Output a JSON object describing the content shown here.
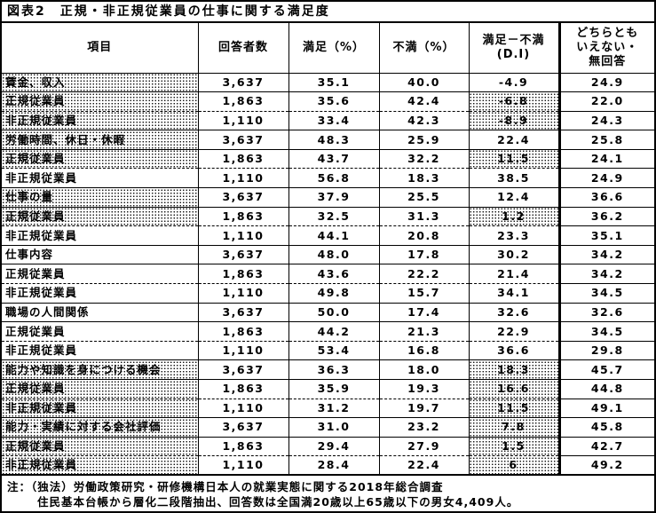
{
  "title": "図表2　正規・非正規従業員の仕事に関する満足度",
  "colors": {
    "border": "#000000",
    "background": "#ffffff",
    "text": "#000000",
    "shading_pattern": "black-dot-halftone"
  },
  "table": {
    "columns": [
      "項目",
      "回答者数",
      "満足（%）",
      "不満（%）",
      "満足－不満\n(D.I)",
      "どちらとも\nいえない・\n無回答"
    ],
    "rows": [
      {
        "label": "賃金、収入",
        "respondents": "3,637",
        "satisfied": "35.1",
        "dissatisfied": "40.0",
        "di": "-4.9",
        "neither": "24.9",
        "row_type": "item",
        "label_shaded": true,
        "di_shaded": false,
        "dashed_top": false
      },
      {
        "label": "正規従業員",
        "respondents": "1,863",
        "satisfied": "35.6",
        "dissatisfied": "42.4",
        "di": "-6.8",
        "neither": "22.0",
        "row_type": "sub",
        "label_shaded": true,
        "di_shaded": true,
        "dashed_top": false
      },
      {
        "label": "非正規従業員",
        "respondents": "1,110",
        "satisfied": "33.4",
        "dissatisfied": "42.3",
        "di": "-8.9",
        "neither": "24.3",
        "row_type": "sub",
        "label_shaded": true,
        "di_shaded": true,
        "dashed_top": true
      },
      {
        "label": "労働時間、休日・休暇",
        "respondents": "3,637",
        "satisfied": "48.3",
        "dissatisfied": "25.9",
        "di": "22.4",
        "neither": "25.8",
        "row_type": "item",
        "label_shaded": true,
        "di_shaded": false,
        "dashed_top": false
      },
      {
        "label": "正規従業員",
        "respondents": "1,863",
        "satisfied": "43.7",
        "dissatisfied": "32.2",
        "di": "11.5",
        "neither": "24.1",
        "row_type": "sub",
        "label_shaded": true,
        "di_shaded": true,
        "dashed_top": false
      },
      {
        "label": "非正規従業員",
        "respondents": "1,110",
        "satisfied": "56.8",
        "dissatisfied": "18.3",
        "di": "38.5",
        "neither": "24.9",
        "row_type": "sub",
        "label_shaded": false,
        "di_shaded": false,
        "dashed_top": true
      },
      {
        "label": "仕事の量",
        "respondents": "3,637",
        "satisfied": "37.9",
        "dissatisfied": "25.5",
        "di": "12.4",
        "neither": "36.6",
        "row_type": "item",
        "label_shaded": true,
        "di_shaded": false,
        "dashed_top": false
      },
      {
        "label": "正規従業員",
        "respondents": "1,863",
        "satisfied": "32.5",
        "dissatisfied": "31.3",
        "di": "1.2",
        "neither": "36.2",
        "row_type": "sub",
        "label_shaded": true,
        "di_shaded": true,
        "dashed_top": false
      },
      {
        "label": "非正規従業員",
        "respondents": "1,110",
        "satisfied": "44.1",
        "dissatisfied": "20.8",
        "di": "23.3",
        "neither": "35.1",
        "row_type": "sub",
        "label_shaded": false,
        "di_shaded": false,
        "dashed_top": true
      },
      {
        "label": "仕事内容",
        "respondents": "3,637",
        "satisfied": "48.0",
        "dissatisfied": "17.8",
        "di": "30.2",
        "neither": "34.2",
        "row_type": "item",
        "label_shaded": false,
        "di_shaded": false,
        "dashed_top": false
      },
      {
        "label": "正規従業員",
        "respondents": "1,863",
        "satisfied": "43.6",
        "dissatisfied": "22.2",
        "di": "21.4",
        "neither": "34.2",
        "row_type": "sub",
        "label_shaded": false,
        "di_shaded": false,
        "dashed_top": false
      },
      {
        "label": "非正規従業員",
        "respondents": "1,110",
        "satisfied": "49.8",
        "dissatisfied": "15.7",
        "di": "34.1",
        "neither": "34.5",
        "row_type": "sub",
        "label_shaded": false,
        "di_shaded": false,
        "dashed_top": true
      },
      {
        "label": "職場の人間関係",
        "respondents": "3,637",
        "satisfied": "50.0",
        "dissatisfied": "17.4",
        "di": "32.6",
        "neither": "32.6",
        "row_type": "item",
        "label_shaded": false,
        "di_shaded": false,
        "dashed_top": false
      },
      {
        "label": "正規従業員",
        "respondents": "1,863",
        "satisfied": "44.2",
        "dissatisfied": "21.3",
        "di": "22.9",
        "neither": "34.5",
        "row_type": "sub",
        "label_shaded": false,
        "di_shaded": false,
        "dashed_top": false
      },
      {
        "label": "非正規従業員",
        "respondents": "1,110",
        "satisfied": "53.4",
        "dissatisfied": "16.8",
        "di": "36.6",
        "neither": "29.8",
        "row_type": "sub",
        "label_shaded": false,
        "di_shaded": false,
        "dashed_top": true
      },
      {
        "label": "能力や知識を身につける機会",
        "respondents": "3,637",
        "satisfied": "36.3",
        "dissatisfied": "18.0",
        "di": "18.3",
        "neither": "45.7",
        "row_type": "item",
        "label_shaded": true,
        "di_shaded": true,
        "dashed_top": false
      },
      {
        "label": "正規従業員",
        "respondents": "1,863",
        "satisfied": "35.9",
        "dissatisfied": "19.3",
        "di": "16.6",
        "neither": "44.8",
        "row_type": "sub",
        "label_shaded": true,
        "di_shaded": true,
        "dashed_top": false
      },
      {
        "label": "非正規従業員",
        "respondents": "1,110",
        "satisfied": "31.2",
        "dissatisfied": "19.7",
        "di": "11.5",
        "neither": "49.1",
        "row_type": "sub",
        "label_shaded": true,
        "di_shaded": true,
        "dashed_top": true
      },
      {
        "label": "能力・実績に対する会社評価",
        "respondents": "3,637",
        "satisfied": "31.0",
        "dissatisfied": "23.2",
        "di": "7.8",
        "neither": "45.8",
        "row_type": "item",
        "label_shaded": true,
        "di_shaded": true,
        "dashed_top": false
      },
      {
        "label": "正規従業員",
        "respondents": "1,863",
        "satisfied": "29.4",
        "dissatisfied": "27.9",
        "di": "1.5",
        "neither": "42.7",
        "row_type": "sub",
        "label_shaded": true,
        "di_shaded": true,
        "dashed_top": false
      },
      {
        "label": "非正規従業員",
        "respondents": "1,110",
        "satisfied": "28.4",
        "dissatisfied": "22.4",
        "di": "6",
        "neither": "49.2",
        "row_type": "sub",
        "label_shaded": true,
        "di_shaded": true,
        "dashed_top": true
      }
    ]
  },
  "note": {
    "line1": "注：（独法）労働政策研究・研修機構日本人の就業実態に関する2018年総合調査",
    "line2": "住民基本台帳から層化二段階抽出、回答数は全国満20歳以上65歳以下の男女4,409人。"
  }
}
